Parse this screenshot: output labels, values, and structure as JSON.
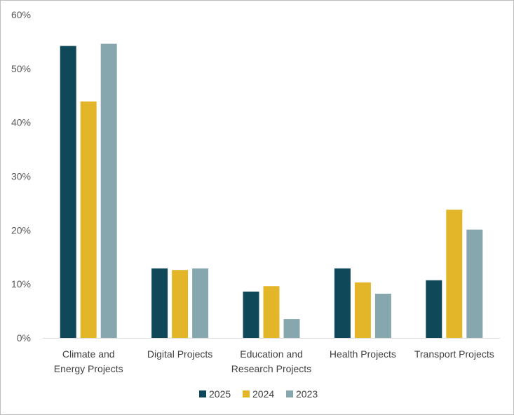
{
  "chart_data": {
    "type": "bar",
    "categories": [
      [
        "Climate and",
        "Energy Projects"
      ],
      [
        "Digital Projects"
      ],
      [
        "Education and",
        "Research Projects"
      ],
      [
        "Health Projects"
      ],
      [
        "Transport Projects"
      ]
    ],
    "series": [
      {
        "name": "2025",
        "color": "#0f4858",
        "values": [
          54.2,
          12.9,
          8.6,
          12.9,
          10.7
        ]
      },
      {
        "name": "2024",
        "color": "#e3b529",
        "values": [
          43.9,
          12.6,
          9.6,
          10.3,
          23.8
        ]
      },
      {
        "name": "2023",
        "color": "#86a7ae",
        "values": [
          54.6,
          12.9,
          3.5,
          8.2,
          20.1
        ]
      }
    ],
    "ylim": [
      0,
      60
    ],
    "yticks": [
      0,
      10,
      20,
      30,
      40,
      50,
      60
    ],
    "ytick_labels": [
      "0%",
      "10%",
      "20%",
      "30%",
      "40%",
      "50%",
      "60%"
    ],
    "grid": false,
    "legend_position": "bottom"
  }
}
